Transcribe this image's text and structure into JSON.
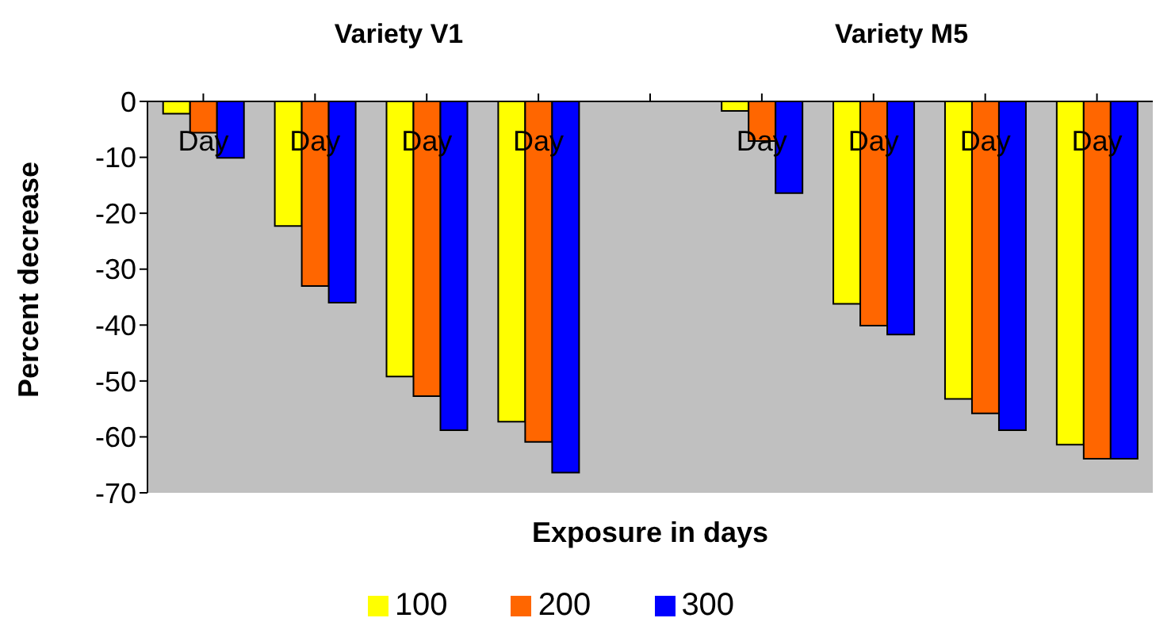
{
  "chart_data": {
    "type": "bar",
    "annotations": [
      "Variety V1",
      "Variety M5"
    ],
    "xlabel": "Exposure in days",
    "ylabel": "Percent decrease",
    "categories": [
      "Day",
      "Day",
      "Day",
      "Day",
      null,
      "Day",
      "Day",
      "Day",
      "Day"
    ],
    "series": [
      {
        "name": "100",
        "color": "#ffff00",
        "values": [
          -2.2,
          -22.3,
          -49.2,
          -57.3,
          null,
          -1.7,
          -36.2,
          -53.2,
          -61.4
        ]
      },
      {
        "name": "200",
        "color": "#ff6600",
        "values": [
          -5.6,
          -33,
          -52.7,
          -60.9,
          null,
          -7.1,
          -40.1,
          -55.8,
          -63.9
        ]
      },
      {
        "name": "300",
        "color": "#0000ff",
        "values": [
          -10.1,
          -36,
          -58.8,
          -66.4,
          null,
          -16.4,
          -41.7,
          -58.8,
          -63.9
        ]
      }
    ],
    "ylim": [
      -70,
      0
    ],
    "yticks": [
      0,
      -10,
      -20,
      -30,
      -40,
      -50,
      -60,
      -70
    ],
    "grid": false,
    "legend": "bottom"
  }
}
